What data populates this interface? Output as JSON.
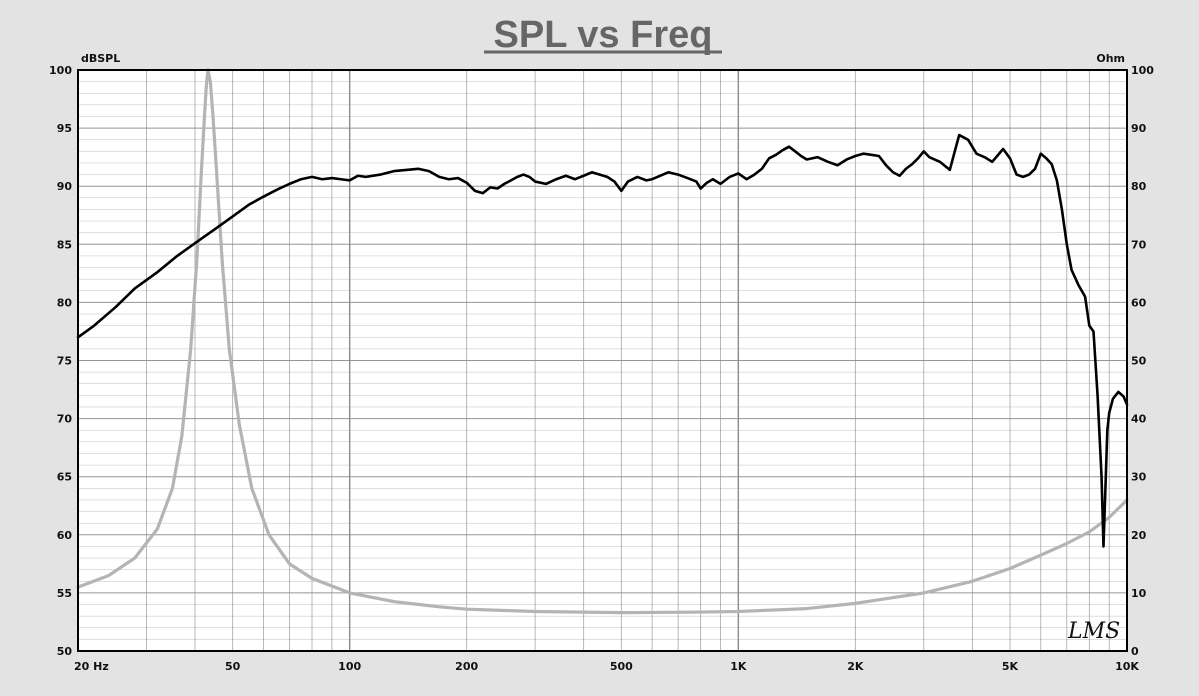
{
  "chart_data": {
    "type": "line",
    "title": "SPL vs Freq",
    "left_axis_unit": "dBSPL",
    "right_axis_unit": "Ohm",
    "x_scale": "log",
    "xlim": [
      20,
      10000
    ],
    "x_ticks": [
      {
        "value": 20,
        "label": "20  Hz"
      },
      {
        "value": 50,
        "label": "50"
      },
      {
        "value": 100,
        "label": "100"
      },
      {
        "value": 200,
        "label": "200"
      },
      {
        "value": 500,
        "label": "500"
      },
      {
        "value": 1000,
        "label": "1K"
      },
      {
        "value": 2000,
        "label": "2K"
      },
      {
        "value": 5000,
        "label": "5K"
      },
      {
        "value": 10000,
        "label": "10K"
      }
    ],
    "ylim_left": [
      50,
      100
    ],
    "y_ticks_left": [
      "50",
      "55",
      "60",
      "65",
      "70",
      "75",
      "80",
      "85",
      "90",
      "95",
      "100"
    ],
    "ylim_right": [
      0,
      100
    ],
    "y_ticks_right": [
      "0",
      "10",
      "20",
      "30",
      "40",
      "50",
      "60",
      "70",
      "80",
      "90",
      "100"
    ],
    "grid": true,
    "logo": "LMS",
    "colors": {
      "background": "#e3e3e3",
      "plot": "#ffffff",
      "spl": "#000000",
      "impedance": "#b4b4b4",
      "grid": "#8a8a8a"
    },
    "series": [
      {
        "key": "spl",
        "axis": "left",
        "points": [
          [
            20,
            77.0
          ],
          [
            22,
            78.0
          ],
          [
            25,
            79.6
          ],
          [
            28,
            81.2
          ],
          [
            32,
            82.6
          ],
          [
            36,
            84.0
          ],
          [
            40,
            85.1
          ],
          [
            45,
            86.3
          ],
          [
            50,
            87.4
          ],
          [
            55,
            88.4
          ],
          [
            60,
            89.1
          ],
          [
            65,
            89.7
          ],
          [
            70,
            90.2
          ],
          [
            75,
            90.6
          ],
          [
            80,
            90.8
          ],
          [
            85,
            90.6
          ],
          [
            90,
            90.7
          ],
          [
            95,
            90.6
          ],
          [
            100,
            90.5
          ],
          [
            105,
            90.9
          ],
          [
            110,
            90.8
          ],
          [
            120,
            91.0
          ],
          [
            130,
            91.3
          ],
          [
            140,
            91.4
          ],
          [
            150,
            91.5
          ],
          [
            160,
            91.3
          ],
          [
            170,
            90.8
          ],
          [
            180,
            90.6
          ],
          [
            190,
            90.7
          ],
          [
            200,
            90.3
          ],
          [
            210,
            89.6
          ],
          [
            220,
            89.4
          ],
          [
            230,
            89.9
          ],
          [
            240,
            89.8
          ],
          [
            250,
            90.2
          ],
          [
            260,
            90.5
          ],
          [
            270,
            90.8
          ],
          [
            280,
            91.0
          ],
          [
            290,
            90.8
          ],
          [
            300,
            90.4
          ],
          [
            320,
            90.2
          ],
          [
            340,
            90.6
          ],
          [
            360,
            90.9
          ],
          [
            380,
            90.6
          ],
          [
            400,
            90.9
          ],
          [
            420,
            91.2
          ],
          [
            440,
            91.0
          ],
          [
            460,
            90.8
          ],
          [
            480,
            90.4
          ],
          [
            500,
            89.6
          ],
          [
            520,
            90.4
          ],
          [
            550,
            90.8
          ],
          [
            580,
            90.5
          ],
          [
            600,
            90.6
          ],
          [
            630,
            90.9
          ],
          [
            660,
            91.2
          ],
          [
            700,
            91.0
          ],
          [
            740,
            90.7
          ],
          [
            780,
            90.4
          ],
          [
            800,
            89.8
          ],
          [
            830,
            90.3
          ],
          [
            860,
            90.6
          ],
          [
            900,
            90.2
          ],
          [
            950,
            90.8
          ],
          [
            1000,
            91.1
          ],
          [
            1050,
            90.6
          ],
          [
            1100,
            91.0
          ],
          [
            1150,
            91.5
          ],
          [
            1200,
            92.4
          ],
          [
            1250,
            92.7
          ],
          [
            1300,
            93.1
          ],
          [
            1350,
            93.4
          ],
          [
            1400,
            93.0
          ],
          [
            1450,
            92.6
          ],
          [
            1500,
            92.3
          ],
          [
            1600,
            92.5
          ],
          [
            1700,
            92.1
          ],
          [
            1800,
            91.8
          ],
          [
            1900,
            92.3
          ],
          [
            2000,
            92.6
          ],
          [
            2100,
            92.8
          ],
          [
            2200,
            92.7
          ],
          [
            2300,
            92.6
          ],
          [
            2400,
            91.8
          ],
          [
            2500,
            91.2
          ],
          [
            2600,
            90.9
          ],
          [
            2700,
            91.5
          ],
          [
            2800,
            91.9
          ],
          [
            2900,
            92.4
          ],
          [
            3000,
            93.0
          ],
          [
            3100,
            92.5
          ],
          [
            3300,
            92.1
          ],
          [
            3500,
            91.4
          ],
          [
            3700,
            94.4
          ],
          [
            3900,
            94.0
          ],
          [
            4100,
            92.8
          ],
          [
            4300,
            92.5
          ],
          [
            4500,
            92.1
          ],
          [
            4800,
            93.2
          ],
          [
            5000,
            92.4
          ],
          [
            5200,
            91.0
          ],
          [
            5400,
            90.8
          ],
          [
            5600,
            91.0
          ],
          [
            5800,
            91.5
          ],
          [
            6000,
            92.8
          ],
          [
            6200,
            92.4
          ],
          [
            6400,
            91.9
          ],
          [
            6600,
            90.5
          ],
          [
            6800,
            88.0
          ],
          [
            7000,
            85.0
          ],
          [
            7200,
            82.8
          ],
          [
            7500,
            81.5
          ],
          [
            7800,
            80.5
          ],
          [
            8000,
            78.0
          ],
          [
            8200,
            77.5
          ],
          [
            8400,
            72.0
          ],
          [
            8600,
            65.0
          ],
          [
            8700,
            59.0
          ],
          [
            8800,
            64.0
          ],
          [
            8900,
            69.0
          ],
          [
            9000,
            70.5
          ],
          [
            9200,
            71.7
          ],
          [
            9500,
            72.3
          ],
          [
            9800,
            71.9
          ],
          [
            10000,
            71.2
          ]
        ]
      },
      {
        "key": "impedance",
        "axis": "right",
        "points": [
          [
            20,
            11.0
          ],
          [
            24,
            13.0
          ],
          [
            28,
            16.0
          ],
          [
            32,
            21.0
          ],
          [
            35,
            28.0
          ],
          [
            37,
            37.0
          ],
          [
            39,
            52.0
          ],
          [
            40.5,
            68.0
          ],
          [
            41.5,
            82.0
          ],
          [
            42.3,
            92.0
          ],
          [
            42.8,
            97.5
          ],
          [
            43.2,
            100.0
          ],
          [
            43.8,
            98.0
          ],
          [
            44.5,
            92.0
          ],
          [
            45.5,
            82.0
          ],
          [
            47,
            67.0
          ],
          [
            49,
            52.0
          ],
          [
            52,
            39.0
          ],
          [
            56,
            28.0
          ],
          [
            62,
            20.0
          ],
          [
            70,
            15.0
          ],
          [
            80,
            12.5
          ],
          [
            100,
            10.0
          ],
          [
            130,
            8.5
          ],
          [
            170,
            7.6
          ],
          [
            200,
            7.2
          ],
          [
            300,
            6.8
          ],
          [
            500,
            6.6
          ],
          [
            800,
            6.7
          ],
          [
            1000,
            6.8
          ],
          [
            1500,
            7.3
          ],
          [
            2000,
            8.2
          ],
          [
            3000,
            10.0
          ],
          [
            4000,
            12.0
          ],
          [
            5000,
            14.2
          ],
          [
            6000,
            16.5
          ],
          [
            7000,
            18.5
          ],
          [
            8000,
            20.5
          ],
          [
            9000,
            23.0
          ],
          [
            10000,
            26.0
          ]
        ]
      }
    ]
  }
}
